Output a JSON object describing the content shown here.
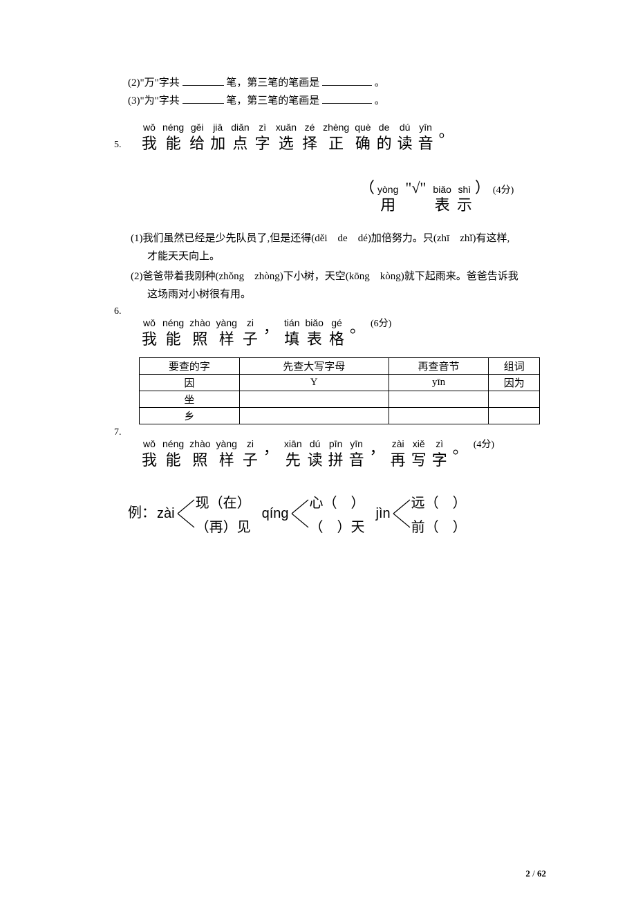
{
  "q4": {
    "sub2": "(2)\"万\"字共",
    "sub2_mid": "笔，第三笔的笔画是",
    "sub2_end": "。",
    "sub3": "(3)\"为\"字共",
    "sub3_mid": "笔，第三笔的笔画是",
    "sub3_end": "。"
  },
  "q5": {
    "num": "5.",
    "title": [
      {
        "p": "wǒ",
        "h": "我"
      },
      {
        "p": "néng",
        "h": "能"
      },
      {
        "p": "gěi",
        "h": "给"
      },
      {
        "p": "jiā",
        "h": "加"
      },
      {
        "p": "diǎn",
        "h": "点"
      },
      {
        "p": "zì",
        "h": "字"
      },
      {
        "p": "xuǎn",
        "h": "选"
      },
      {
        "p": "zé",
        "h": "择"
      },
      {
        "p": "zhèng",
        "h": "正"
      },
      {
        "p": "què",
        "h": "确"
      },
      {
        "p": "de",
        "h": "的"
      },
      {
        "p": "dú",
        "h": "读"
      },
      {
        "p": "yīn",
        "h": "音"
      },
      {
        "p": "",
        "h": "。"
      }
    ],
    "sub_open": "（",
    "sub_yong": {
      "p": "yòng",
      "h": "用"
    },
    "sub_check": "\"√\"",
    "sub_biao": {
      "p": "biǎo",
      "h": "表"
    },
    "sub_shi": {
      "p": "shì",
      "h": "示"
    },
    "sub_close": "）",
    "points": "(4分)",
    "p1a": "(1)我们虽然已经是少先队员了,但是还得(děi　de　dé)加倍努力。只(zhī　zhǐ)有这样,",
    "p1b": "才能天天向上。",
    "p2a": "(2)爸爸带着我刚种(zhǒng　zhòng)下小树，天空(kōng　kòng)就下起雨来。爸爸告诉我",
    "p2b": "这场雨对小树很有用。"
  },
  "q6": {
    "num": "6.",
    "title": [
      {
        "p": "wǒ",
        "h": "我"
      },
      {
        "p": "néng",
        "h": "能"
      },
      {
        "p": "zhào",
        "h": "照"
      },
      {
        "p": "yàng",
        "h": "样"
      },
      {
        "p": "zi",
        "h": "子"
      },
      {
        "p": "",
        "h": "，"
      },
      {
        "p": "tián",
        "h": "填"
      },
      {
        "p": "biǎo",
        "h": "表"
      },
      {
        "p": "gé",
        "h": "格"
      },
      {
        "p": "",
        "h": "。"
      }
    ],
    "points": "(6分)",
    "headers": [
      "要查的字",
      "先查大写字母",
      "再查音节",
      "组词"
    ],
    "rows": [
      [
        "因",
        "Y",
        "yīn",
        "因为"
      ],
      [
        "坐",
        "",
        "",
        ""
      ],
      [
        "乡",
        "",
        "",
        ""
      ]
    ]
  },
  "q7": {
    "num": "7.",
    "title": [
      {
        "p": "wǒ",
        "h": "我"
      },
      {
        "p": "néng",
        "h": "能"
      },
      {
        "p": "zhào",
        "h": "照"
      },
      {
        "p": "yàng",
        "h": "样"
      },
      {
        "p": "zi",
        "h": "子"
      },
      {
        "p": "",
        "h": "，"
      },
      {
        "p": "xiān",
        "h": "先"
      },
      {
        "p": "dú",
        "h": "读"
      },
      {
        "p": "pīn",
        "h": "拼"
      },
      {
        "p": "yīn",
        "h": "音"
      },
      {
        "p": "",
        "h": "，"
      },
      {
        "p": "zài",
        "h": "再"
      },
      {
        "p": "xiě",
        "h": "写"
      },
      {
        "p": "zì",
        "h": "字"
      },
      {
        "p": "",
        "h": "。"
      }
    ],
    "points": "(4分)",
    "example_label": "例：",
    "groups": [
      {
        "py": "zài",
        "top": "现（在）",
        "bot": "（再）见"
      },
      {
        "py": "qíng",
        "top": "心（　）",
        "bot": "（　）天"
      },
      {
        "py": "jìn",
        "top": "远（　）",
        "bot": "前（　）"
      }
    ]
  },
  "footer": {
    "cur": "2",
    "sep": " / ",
    "total": "62"
  }
}
